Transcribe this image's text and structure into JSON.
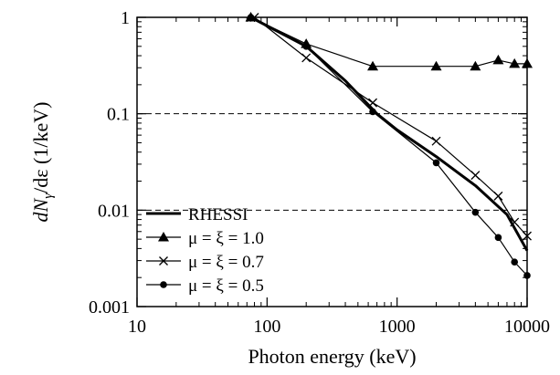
{
  "chart_data": {
    "type": "line",
    "xlabel": "Photon energy  (keV)",
    "ylabel_parts": {
      "main": "dN",
      "sub": "γ",
      "rest": "/dε  (1/keV)"
    },
    "x_scale": "log",
    "y_scale": "log",
    "xlim": [
      10,
      10000
    ],
    "ylim": [
      0.001,
      1
    ],
    "x_ticks": [
      {
        "value": 10,
        "label": "10"
      },
      {
        "value": 100,
        "label": "100"
      },
      {
        "value": 1000,
        "label": "1000"
      },
      {
        "value": 10000,
        "label": "10000"
      }
    ],
    "y_ticks": [
      {
        "value": 0.001,
        "label": "0.001"
      },
      {
        "value": 0.01,
        "label": "0.01"
      },
      {
        "value": 0.1,
        "label": "0.1"
      },
      {
        "value": 1,
        "label": "1"
      }
    ],
    "dashed_gridlines_y": [
      0.01,
      0.1
    ],
    "legend_placement": "bottom-left",
    "series": [
      {
        "name": "RHESSI",
        "marker": "none",
        "stroke_width": 3,
        "points": [
          {
            "x": 75,
            "y": 1.0
          },
          {
            "x": 200,
            "y": 0.5
          },
          {
            "x": 400,
            "y": 0.22
          },
          {
            "x": 700,
            "y": 0.1
          },
          {
            "x": 1000,
            "y": 0.068
          },
          {
            "x": 2000,
            "y": 0.036
          },
          {
            "x": 4000,
            "y": 0.018
          },
          {
            "x": 7000,
            "y": 0.009
          },
          {
            "x": 10000,
            "y": 0.0038
          }
        ]
      },
      {
        "name": "μ = ξ = 1.0",
        "marker": "triangle",
        "stroke_width": 1.2,
        "points": [
          {
            "x": 75,
            "y": 1.0
          },
          {
            "x": 200,
            "y": 0.53
          },
          {
            "x": 650,
            "y": 0.31
          },
          {
            "x": 2000,
            "y": 0.31
          },
          {
            "x": 4000,
            "y": 0.31
          },
          {
            "x": 6000,
            "y": 0.36
          },
          {
            "x": 8000,
            "y": 0.33
          },
          {
            "x": 10000,
            "y": 0.33
          }
        ]
      },
      {
        "name": "μ = ξ = 0.7",
        "marker": "cross",
        "stroke_width": 1.2,
        "points": [
          {
            "x": 80,
            "y": 1.0
          },
          {
            "x": 200,
            "y": 0.38
          },
          {
            "x": 650,
            "y": 0.13
          },
          {
            "x": 2000,
            "y": 0.052
          },
          {
            "x": 4000,
            "y": 0.023
          },
          {
            "x": 6000,
            "y": 0.014
          },
          {
            "x": 8000,
            "y": 0.0075
          },
          {
            "x": 10000,
            "y": 0.0054
          }
        ]
      },
      {
        "name": "μ = ξ = 0.5",
        "marker": "circle",
        "stroke_width": 1.2,
        "points": [
          {
            "x": 75,
            "y": 1.0
          },
          {
            "x": 200,
            "y": 0.5
          },
          {
            "x": 650,
            "y": 0.105
          },
          {
            "x": 2000,
            "y": 0.031
          },
          {
            "x": 4000,
            "y": 0.0095
          },
          {
            "x": 6000,
            "y": 0.0052
          },
          {
            "x": 8000,
            "y": 0.0029
          },
          {
            "x": 10000,
            "y": 0.0021
          }
        ]
      }
    ]
  }
}
